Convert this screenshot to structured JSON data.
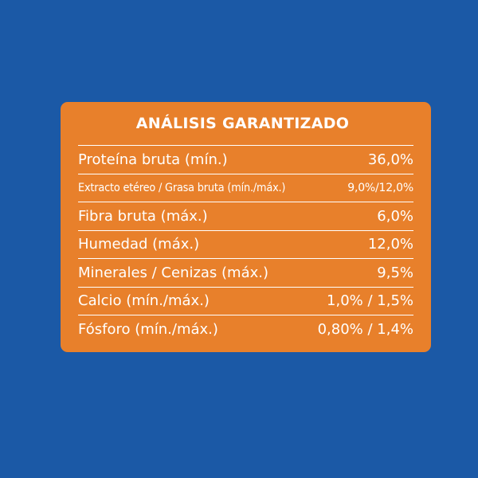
{
  "panel": {
    "title": "ANÁLISIS GARANTIZADO",
    "background_color": "#e8802b",
    "page_background": "#1b59a6",
    "rows": [
      {
        "label": "Proteína bruta (mín.)",
        "value": "36,0%"
      },
      {
        "label": "Extracto etéreo / Grasa bruta (mín./máx.)",
        "value": "9,0%/12,0%"
      },
      {
        "label": "Fibra bruta (máx.)",
        "value": "6,0%"
      },
      {
        "label": "Humedad (máx.)",
        "value": "12,0%"
      },
      {
        "label": "Minerales / Cenizas (máx.)",
        "value": "9,5%"
      },
      {
        "label": "Calcio (mín./máx.)",
        "value": "1,0% / 1,5%"
      },
      {
        "label": "Fósforo (mín./máx.)",
        "value": "0,80% / 1,4%"
      }
    ]
  }
}
